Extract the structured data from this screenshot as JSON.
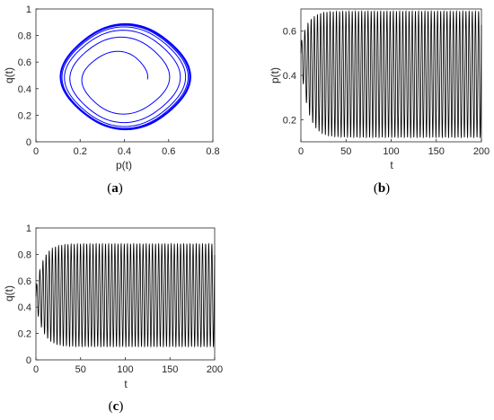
{
  "chart_data": [
    {
      "id": "a",
      "panel_label": "a",
      "type": "line",
      "description_kind": "phase-portrait spiral converging to limit cycle",
      "xlabel": "p(t)",
      "ylabel": "q(t)",
      "xlim": [
        0,
        0.8
      ],
      "ylim": [
        0,
        1
      ],
      "xticks": [
        0,
        0.2,
        0.4,
        0.6,
        0.8
      ],
      "yticks": [
        0,
        0.2,
        0.4,
        0.6,
        0.8,
        1
      ],
      "xtick_labels": [
        "0",
        "0.2",
        "0.4",
        "0.6",
        "0.8"
      ],
      "ytick_labels": [
        "0",
        "0.2",
        "0.4",
        "0.6",
        "0.8",
        "1"
      ],
      "color": "#0000ff",
      "grid": false,
      "start_point": {
        "p": 0.5,
        "q": 0.48
      },
      "limit_cycle": {
        "p_min": 0.12,
        "p_max": 0.69,
        "q_min": 0.1,
        "q_max": 0.88
      },
      "center": {
        "p": 0.38,
        "q": 0.47
      }
    },
    {
      "id": "b",
      "panel_label": "b",
      "type": "line",
      "xlabel": "t",
      "ylabel": "p(t)",
      "xlim": [
        0,
        200
      ],
      "ylim": [
        0.1,
        0.7
      ],
      "xticks": [
        0,
        50,
        100,
        150,
        200
      ],
      "yticks": [
        0.2,
        0.4,
        0.6
      ],
      "xtick_labels": [
        "0",
        "50",
        "100",
        "150",
        "200"
      ],
      "ytick_labels": [
        "0.2",
        "0.4",
        "0.6"
      ],
      "color": "#000000",
      "grid": false,
      "initial": 0.5,
      "steady_min": 0.12,
      "steady_max": 0.69,
      "period": 3.5
    },
    {
      "id": "c",
      "panel_label": "c",
      "type": "line",
      "xlabel": "t",
      "ylabel": "q(t)",
      "xlim": [
        0,
        200
      ],
      "ylim": [
        0,
        1
      ],
      "xticks": [
        0,
        50,
        100,
        150,
        200
      ],
      "yticks": [
        0,
        0.2,
        0.4,
        0.6,
        0.8,
        1
      ],
      "xtick_labels": [
        "0",
        "50",
        "100",
        "150",
        "200"
      ],
      "ytick_labels": [
        "0",
        "0.2",
        "0.4",
        "0.6",
        "0.8",
        "1"
      ],
      "color": "#000000",
      "grid": false,
      "initial": 0.48,
      "steady_min": 0.1,
      "steady_max": 0.88,
      "period": 3.5
    }
  ]
}
